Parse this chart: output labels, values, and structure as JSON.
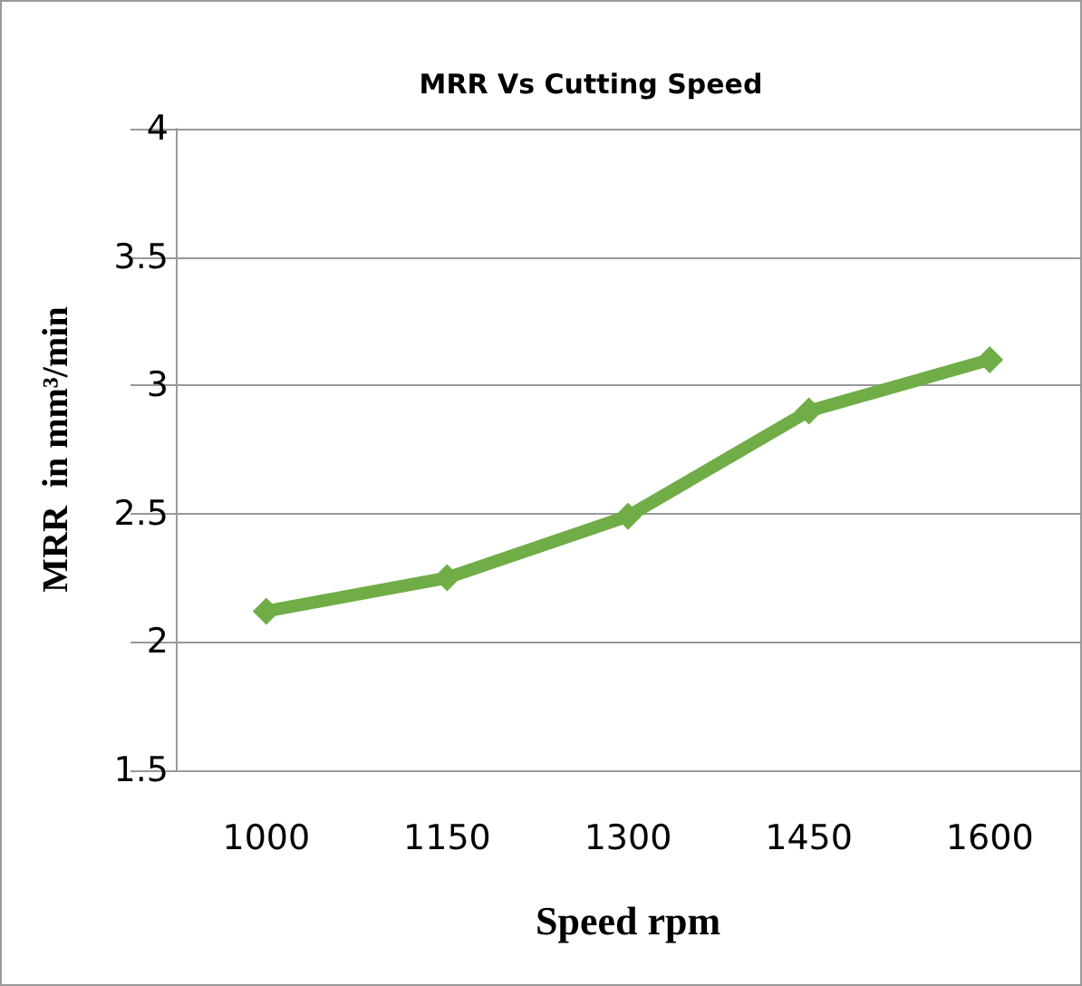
{
  "chart_data": {
    "type": "line",
    "title": "MRR Vs Cutting Speed",
    "xlabel": "Speed rpm",
    "ylabel": "MRR  in mm³/min",
    "categories": [
      "1000",
      "1150",
      "1300",
      "1450",
      "1600"
    ],
    "series": [
      {
        "color": "#70ad47",
        "values": [
          2.12,
          2.25,
          2.49,
          2.9,
          3.1
        ]
      }
    ],
    "ylim": [
      1.5,
      4
    ],
    "yticks": [
      1.5,
      2,
      2.5,
      3,
      3.5,
      4
    ],
    "grid": "y",
    "marker": "diamond",
    "line_style": "solid"
  }
}
